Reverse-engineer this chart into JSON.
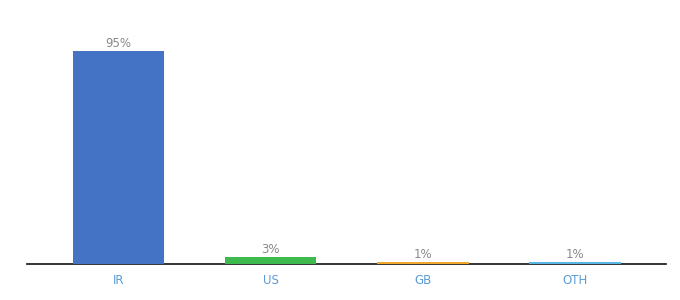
{
  "categories": [
    "IR",
    "US",
    "GB",
    "OTH"
  ],
  "values": [
    95,
    3,
    1,
    1
  ],
  "bar_colors": [
    "#4472c4",
    "#3dba4e",
    "#f0a830",
    "#5ab4e5"
  ],
  "labels": [
    "95%",
    "3%",
    "1%",
    "1%"
  ],
  "background_color": "#ffffff",
  "ylim": [
    0,
    107
  ],
  "bar_width": 0.6,
  "label_fontsize": 8.5,
  "tick_fontsize": 8.5,
  "bottom_line_color": "#111111",
  "label_color": "#888888",
  "tick_color": "#5b9bd5"
}
